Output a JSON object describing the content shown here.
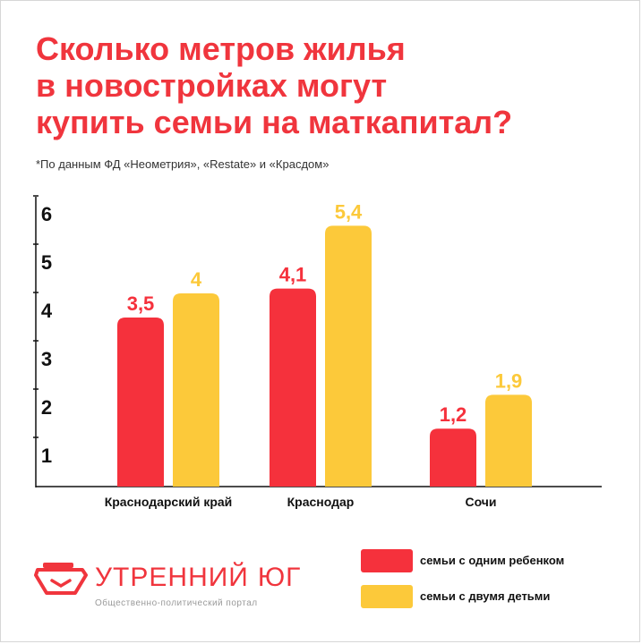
{
  "title_lines": [
    "Сколько метров жилья",
    "в новостройках могут",
    "купить семьи на маткапитал?"
  ],
  "source_note": "*По данным ФД «Неометрия», «Restate» и «Красдом»",
  "colors": {
    "accent": "#f0353d",
    "series_one": "#f5313c",
    "series_two": "#fcc93a"
  },
  "chart_data": {
    "type": "bar",
    "title": "Сколько метров жилья в новостройках могут купить семьи на маткапитал?",
    "categories": [
      "Краснодарский край",
      "Краснодар",
      "Сочи"
    ],
    "series": [
      {
        "name": "семьи с одним ребенком",
        "values": [
          3.5,
          4.1,
          1.2
        ],
        "labels": [
          "3,5",
          "4,1",
          "1,2"
        ],
        "color": "#f5313c"
      },
      {
        "name": "семьи с двумя детьми",
        "values": [
          4,
          5.4,
          1.9
        ],
        "labels": [
          "4",
          "5,4",
          "1,9"
        ],
        "color": "#fcc93a"
      }
    ],
    "yticks": [
      "1",
      "2",
      "3",
      "4",
      "5",
      "6"
    ],
    "ylim": [
      0,
      6.5
    ],
    "xlabel": "",
    "ylabel": "",
    "grid": false,
    "legend_position": "bottom-right"
  },
  "logo": {
    "name_part1": "УТРЕННИЙ",
    "name_part2": "ЮГ",
    "tagline": "Общественно-политический портал",
    "icon": "tray-icon"
  },
  "legend": [
    {
      "label": "семьи с одним ребенком",
      "color": "#f5313c"
    },
    {
      "label": "семьи с двумя детьми",
      "color": "#fcc93a"
    }
  ]
}
